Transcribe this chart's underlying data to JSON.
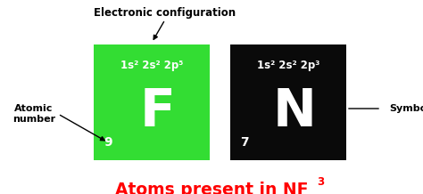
{
  "title_main": "Atoms present in NF",
  "title_sub": "3",
  "title_color": "#ff0000",
  "bg_color": "#ffffff",
  "f_box_color": "#33dd33",
  "n_box_color": "#0a0a0a",
  "f_atomic_number": "9",
  "f_symbol": "F",
  "f_config": "1s² 2s² 2p⁵",
  "n_atomic_number": "7",
  "n_symbol": "N",
  "n_config": "1s² 2s² 2p³",
  "label_atomic_number": "Atomic\nnumber",
  "label_symbol": "Symbol",
  "label_elec_config": "Electronic configuration",
  "text_white": "#ffffff",
  "text_black": "#000000",
  "fig_w": 4.74,
  "fig_h": 2.18,
  "dpi": 100
}
